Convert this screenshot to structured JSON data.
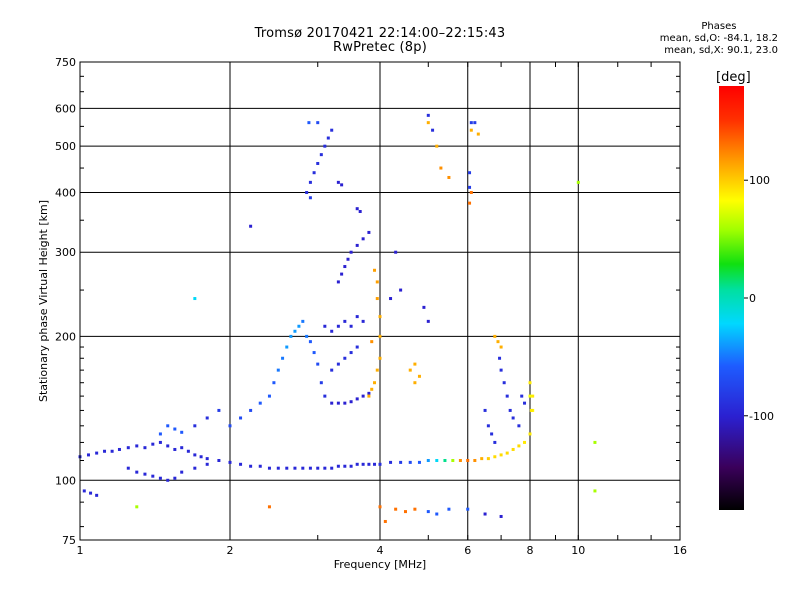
{
  "header": {
    "title": "Tromsø 20170421 22:14:00–22:15:43",
    "subtitle": "RwPretec (8p)"
  },
  "phases": {
    "heading": "Phases",
    "line_o": "mean, sd,O: -84.1, 18.2",
    "line_x": "mean, sd,X:  90.1, 23.0"
  },
  "colorbar": {
    "unit": "[deg]",
    "range": [
      -180,
      180
    ],
    "ticks": [
      {
        "value": 100,
        "label": "100"
      },
      {
        "value": 0,
        "label": "0"
      },
      {
        "value": -100,
        "label": "-100"
      }
    ]
  },
  "chart_data": {
    "type": "scatter",
    "xscale": "log",
    "yscale": "log",
    "xlabel": "Frequency [MHz]",
    "ylabel": "Stationary phase Virtual Height [km]",
    "xlim": [
      1,
      16
    ],
    "ylim": [
      75,
      750
    ],
    "grid": true,
    "xticks": [
      {
        "value": 1,
        "label": "1"
      },
      {
        "value": 2,
        "label": "2"
      },
      {
        "value": 4,
        "label": "4"
      },
      {
        "value": 6,
        "label": "6"
      },
      {
        "value": 8,
        "label": "8"
      },
      {
        "value": 10,
        "label": "10"
      },
      {
        "value": 16,
        "label": "16"
      }
    ],
    "yticks": [
      {
        "value": 75,
        "label": "75"
      },
      {
        "value": 100,
        "label": "100"
      },
      {
        "value": 200,
        "label": "200"
      },
      {
        "value": 300,
        "label": "300"
      },
      {
        "value": 400,
        "label": "400"
      },
      {
        "value": 500,
        "label": "500"
      },
      {
        "value": 600,
        "label": "600"
      },
      {
        "value": 750,
        "label": "750"
      }
    ],
    "points": [
      [
        1.0,
        112,
        -95
      ],
      [
        1.04,
        113,
        -95
      ],
      [
        1.08,
        114,
        -95
      ],
      [
        1.12,
        115,
        -95
      ],
      [
        1.16,
        115,
        -95
      ],
      [
        1.2,
        116,
        -95
      ],
      [
        1.25,
        117,
        -95
      ],
      [
        1.3,
        118,
        -95
      ],
      [
        1.35,
        117,
        -95
      ],
      [
        1.4,
        119,
        -95
      ],
      [
        1.45,
        120,
        -95
      ],
      [
        1.5,
        118,
        -95
      ],
      [
        1.55,
        116,
        -95
      ],
      [
        1.6,
        117,
        -95
      ],
      [
        1.65,
        115,
        -95
      ],
      [
        1.7,
        113,
        -95
      ],
      [
        1.75,
        112,
        -95
      ],
      [
        1.8,
        111,
        -95
      ],
      [
        1.9,
        110,
        -95
      ],
      [
        2.0,
        109,
        -95
      ],
      [
        2.1,
        108,
        -95
      ],
      [
        2.2,
        107,
        -95
      ],
      [
        2.3,
        107,
        -95
      ],
      [
        2.4,
        106,
        -95
      ],
      [
        2.5,
        106,
        -95
      ],
      [
        2.6,
        106,
        -95
      ],
      [
        2.7,
        106,
        -95
      ],
      [
        2.8,
        106,
        -95
      ],
      [
        2.9,
        106,
        -95
      ],
      [
        3.0,
        106,
        -95
      ],
      [
        3.1,
        106,
        -95
      ],
      [
        3.2,
        106,
        -95
      ],
      [
        3.3,
        107,
        -95
      ],
      [
        3.4,
        107,
        -95
      ],
      [
        3.5,
        107,
        -95
      ],
      [
        3.6,
        108,
        -95
      ],
      [
        3.7,
        108,
        -95
      ],
      [
        3.8,
        108,
        -95
      ],
      [
        3.9,
        108,
        -95
      ],
      [
        4.0,
        108,
        -90
      ],
      [
        4.2,
        109,
        -90
      ],
      [
        4.4,
        109,
        -80
      ],
      [
        4.6,
        109,
        -70
      ],
      [
        4.8,
        109,
        -60
      ],
      [
        5.0,
        110,
        -40
      ],
      [
        5.2,
        110,
        -20
      ],
      [
        5.4,
        110,
        10
      ],
      [
        5.6,
        110,
        60
      ],
      [
        5.8,
        110,
        120
      ],
      [
        6.0,
        110,
        130
      ],
      [
        6.2,
        110,
        120
      ],
      [
        6.4,
        111,
        110
      ],
      [
        6.6,
        111,
        100
      ],
      [
        6.8,
        112,
        95
      ],
      [
        7.0,
        113,
        95
      ],
      [
        7.2,
        114,
        95
      ],
      [
        7.4,
        116,
        95
      ],
      [
        7.6,
        118,
        95
      ],
      [
        7.8,
        120,
        90
      ],
      [
        8.0,
        125,
        90
      ],
      [
        8.1,
        140,
        85
      ],
      [
        8.0,
        150,
        80
      ],
      [
        1.02,
        95,
        -95
      ],
      [
        1.05,
        94,
        -95
      ],
      [
        1.08,
        93,
        -95
      ],
      [
        1.25,
        106,
        -95
      ],
      [
        1.3,
        104,
        -95
      ],
      [
        1.35,
        103,
        -95
      ],
      [
        1.4,
        102,
        -95
      ],
      [
        1.45,
        101,
        -95
      ],
      [
        1.5,
        100,
        -95
      ],
      [
        1.55,
        101,
        -95
      ],
      [
        1.6,
        104,
        -95
      ],
      [
        1.7,
        106,
        -95
      ],
      [
        1.8,
        108,
        -95
      ],
      [
        1.45,
        125,
        -60
      ],
      [
        1.5,
        130,
        -60
      ],
      [
        1.55,
        128,
        -60
      ],
      [
        1.6,
        126,
        -60
      ],
      [
        1.7,
        130,
        -90
      ],
      [
        1.8,
        135,
        -90
      ],
      [
        1.9,
        140,
        -80
      ],
      [
        2.0,
        130,
        -70
      ],
      [
        2.1,
        135,
        -70
      ],
      [
        2.2,
        140,
        -70
      ],
      [
        2.3,
        145,
        -60
      ],
      [
        2.4,
        150,
        -60
      ],
      [
        2.45,
        160,
        -60
      ],
      [
        2.5,
        170,
        -50
      ],
      [
        2.55,
        180,
        -50
      ],
      [
        2.6,
        190,
        -40
      ],
      [
        2.65,
        200,
        -40
      ],
      [
        2.7,
        205,
        -40
      ],
      [
        2.75,
        210,
        -40
      ],
      [
        2.8,
        215,
        -50
      ],
      [
        2.85,
        200,
        -50
      ],
      [
        2.9,
        195,
        -60
      ],
      [
        2.95,
        185,
        -60
      ],
      [
        3.0,
        175,
        -70
      ],
      [
        3.05,
        160,
        -80
      ],
      [
        3.1,
        150,
        -90
      ],
      [
        3.2,
        145,
        -100
      ],
      [
        3.3,
        145,
        -100
      ],
      [
        3.4,
        145,
        -100
      ],
      [
        3.5,
        146,
        -100
      ],
      [
        3.6,
        148,
        -100
      ],
      [
        3.7,
        150,
        -100
      ],
      [
        3.8,
        152,
        -100
      ],
      [
        3.2,
        170,
        -90
      ],
      [
        3.3,
        175,
        -90
      ],
      [
        3.4,
        180,
        -90
      ],
      [
        3.5,
        185,
        -90
      ],
      [
        3.6,
        190,
        -90
      ],
      [
        3.1,
        210,
        -95
      ],
      [
        3.2,
        205,
        -95
      ],
      [
        3.3,
        210,
        -95
      ],
      [
        3.4,
        215,
        -95
      ],
      [
        3.5,
        210,
        -95
      ],
      [
        3.6,
        220,
        -95
      ],
      [
        3.7,
        215,
        -95
      ],
      [
        3.3,
        260,
        -100
      ],
      [
        3.35,
        270,
        -100
      ],
      [
        3.4,
        280,
        -100
      ],
      [
        3.45,
        290,
        -100
      ],
      [
        3.5,
        300,
        -100
      ],
      [
        3.6,
        310,
        -100
      ],
      [
        3.7,
        320,
        -100
      ],
      [
        3.8,
        330,
        -100
      ],
      [
        2.85,
        400,
        -90
      ],
      [
        2.9,
        420,
        -90
      ],
      [
        2.95,
        440,
        -90
      ],
      [
        3.0,
        460,
        -90
      ],
      [
        3.05,
        480,
        -90
      ],
      [
        3.1,
        500,
        -90
      ],
      [
        3.15,
        520,
        -90
      ],
      [
        3.2,
        540,
        -90
      ],
      [
        2.9,
        390,
        -80
      ],
      [
        3.0,
        560,
        -70
      ],
      [
        2.88,
        560,
        -60
      ],
      [
        3.3,
        420,
        -100
      ],
      [
        3.35,
        415,
        -100
      ],
      [
        3.6,
        370,
        -100
      ],
      [
        3.65,
        365,
        -100
      ],
      [
        3.8,
        150,
        110
      ],
      [
        3.85,
        155,
        110
      ],
      [
        3.9,
        160,
        110
      ],
      [
        3.95,
        170,
        110
      ],
      [
        4.0,
        180,
        110
      ],
      [
        4.0,
        200,
        110
      ],
      [
        4.0,
        220,
        110
      ],
      [
        3.95,
        240,
        115
      ],
      [
        3.95,
        260,
        115
      ],
      [
        3.9,
        275,
        115
      ],
      [
        3.85,
        195,
        120
      ],
      [
        4.6,
        170,
        110
      ],
      [
        4.7,
        175,
        110
      ],
      [
        4.8,
        165,
        110
      ],
      [
        4.7,
        160,
        110
      ],
      [
        5.0,
        580,
        -90
      ],
      [
        5.1,
        540,
        -90
      ],
      [
        5.2,
        500,
        110
      ],
      [
        5.0,
        560,
        110
      ],
      [
        6.1,
        560,
        -80
      ],
      [
        6.2,
        560,
        -80
      ],
      [
        6.1,
        540,
        110
      ],
      [
        6.3,
        530,
        110
      ],
      [
        6.8,
        200,
        110
      ],
      [
        6.9,
        195,
        110
      ],
      [
        7.0,
        190,
        110
      ],
      [
        6.95,
        180,
        -90
      ],
      [
        7.0,
        170,
        -90
      ],
      [
        7.1,
        160,
        -90
      ],
      [
        7.2,
        150,
        -90
      ],
      [
        7.3,
        140,
        -90
      ],
      [
        7.4,
        135,
        -90
      ],
      [
        7.6,
        130,
        -90
      ],
      [
        7.7,
        150,
        -90
      ],
      [
        7.8,
        145,
        -90
      ],
      [
        8.0,
        160,
        90
      ],
      [
        8.1,
        150,
        90
      ],
      [
        8.05,
        140,
        90
      ],
      [
        6.5,
        140,
        -90
      ],
      [
        6.6,
        130,
        -90
      ],
      [
        6.7,
        125,
        -90
      ],
      [
        6.8,
        120,
        -90
      ],
      [
        6.05,
        440,
        -80
      ],
      [
        6.05,
        410,
        -80
      ],
      [
        6.1,
        400,
        130
      ],
      [
        6.05,
        380,
        130
      ],
      [
        1.3,
        88,
        60
      ],
      [
        2.4,
        88,
        130
      ],
      [
        4.0,
        88,
        130
      ],
      [
        4.1,
        82,
        130
      ],
      [
        4.3,
        87,
        130
      ],
      [
        4.5,
        86,
        130
      ],
      [
        4.7,
        87,
        130
      ],
      [
        5.0,
        86,
        -60
      ],
      [
        5.2,
        85,
        -60
      ],
      [
        5.5,
        87,
        -60
      ],
      [
        6.0,
        87,
        -60
      ],
      [
        6.5,
        85,
        -100
      ],
      [
        7.0,
        84,
        -100
      ],
      [
        2.2,
        340,
        -100
      ],
      [
        1.7,
        240,
        -20
      ],
      [
        4.2,
        240,
        -100
      ],
      [
        4.3,
        300,
        -100
      ],
      [
        4.4,
        250,
        -100
      ],
      [
        4.9,
        230,
        -100
      ],
      [
        5.0,
        215,
        -100
      ],
      [
        10.0,
        420,
        60
      ],
      [
        10.8,
        95,
        60
      ],
      [
        10.8,
        120,
        60
      ],
      [
        5.3,
        450,
        120
      ],
      [
        5.5,
        430,
        120
      ]
    ]
  }
}
